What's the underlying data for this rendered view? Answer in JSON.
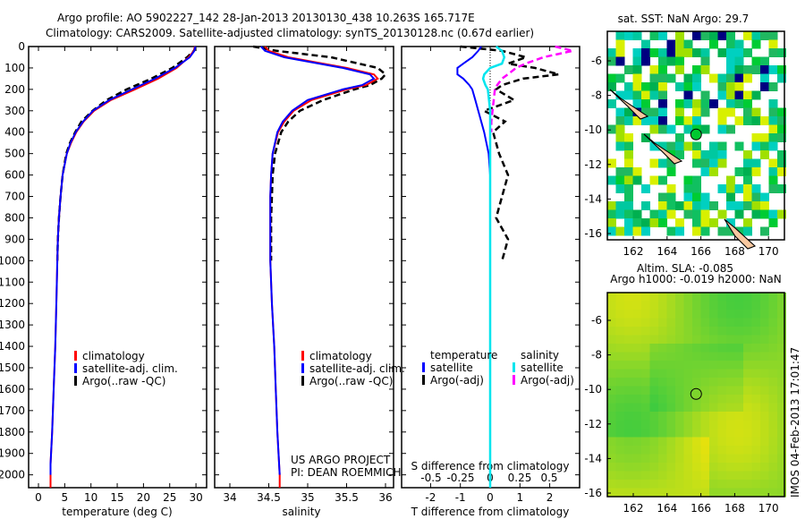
{
  "title": {
    "line1": "Argo profile: AO 5902227_142 28-Jan-2013 20130130_438 10.263S 165.717E",
    "line2": "Climatology: CARS2009. Satellite-adjusted climatology: synTS_20130128.nc (0.67d earlier)"
  },
  "depth_ticks": [
    0,
    100,
    200,
    300,
    400,
    500,
    600,
    700,
    800,
    900,
    1000,
    1100,
    1200,
    1300,
    1400,
    1500,
    1600,
    1700,
    1800,
    1900,
    2000
  ],
  "credit": {
    "line1": "US ARGO PROJECT",
    "line2": "PI: DEAN ROEMMICH"
  },
  "timestamp": "IMOS 04-Feb-2013 17:01:47",
  "colors": {
    "climatology": "#ff0000",
    "satellite": "#0000ff",
    "argo": "#000000",
    "sal_satellite": "#00e5ee",
    "sal_argo": "#ff00ff",
    "land": "#f8c8a0"
  },
  "chart_data": [
    {
      "type": "line",
      "xlabel": "temperature (deg C)",
      "ylabel": "depth",
      "xlim": [
        -2,
        32
      ],
      "ylim": [
        2060,
        0
      ],
      "xticks": [
        0,
        5,
        10,
        15,
        20,
        25,
        30
      ],
      "legend": [
        "climatology",
        "satellite-adj. clim.",
        "Argo(..raw -QC)"
      ],
      "legend_position": "bottom-center",
      "depth": [
        0,
        20,
        50,
        100,
        150,
        200,
        250,
        300,
        350,
        400,
        450,
        500,
        600,
        700,
        800,
        900,
        1000,
        1200,
        1400,
        1600,
        1800,
        1950,
        2000,
        2060
      ],
      "series": [
        {
          "name": "climatology",
          "values": [
            29.8,
            29.6,
            28.6,
            26.3,
            22.8,
            18.4,
            13.8,
            10.6,
            8.6,
            7.2,
            6.2,
            5.4,
            4.6,
            4.2,
            3.9,
            3.7,
            3.6,
            3.4,
            3.2,
            2.9,
            2.6,
            2.3,
            2.3,
            2.3
          ]
        },
        {
          "name": "satellite-adj. clim.",
          "values": [
            29.9,
            29.7,
            28.8,
            26.0,
            22.2,
            17.8,
            13.5,
            10.4,
            8.5,
            7.1,
            6.1,
            5.4,
            4.6,
            4.2,
            3.9,
            3.7,
            3.6,
            3.4,
            3.2,
            2.9,
            2.6,
            2.3,
            2.3,
            null
          ]
        },
        {
          "name": "Argo(..raw -QC)",
          "values": [
            29.9,
            29.6,
            28.3,
            25.5,
            21.5,
            16.8,
            13.0,
            10.3,
            8.2,
            7.0,
            6.0,
            5.3,
            4.6,
            4.2,
            3.9,
            3.7,
            3.6,
            null,
            null,
            null,
            null,
            null,
            null,
            null
          ]
        }
      ]
    },
    {
      "type": "line",
      "xlabel": "salinity",
      "ylabel": "depth",
      "xlim": [
        33.8,
        36.15
      ],
      "ylim": [
        2060,
        0
      ],
      "xticks": [
        34,
        34.5,
        35,
        35.5,
        36
      ],
      "legend": [
        "climatology",
        "satellite-adj. clim.",
        "Argo(..raw -QC)"
      ],
      "legend_position": "bottom-center",
      "depth": [
        0,
        20,
        50,
        100,
        130,
        150,
        180,
        200,
        250,
        300,
        350,
        400,
        500,
        600,
        700,
        800,
        1000,
        1200,
        1400,
        1600,
        1800,
        2000,
        2060
      ],
      "series": [
        {
          "name": "climatology",
          "values": [
            34.45,
            34.5,
            34.75,
            35.5,
            35.85,
            35.9,
            35.75,
            35.5,
            35.05,
            34.82,
            34.7,
            34.62,
            34.55,
            34.53,
            34.52,
            34.52,
            34.52,
            34.54,
            34.57,
            34.59,
            34.61,
            34.64,
            34.64
          ]
        },
        {
          "name": "satellite-adj. clim.",
          "values": [
            34.4,
            34.45,
            34.7,
            35.45,
            35.8,
            35.85,
            35.7,
            35.45,
            35.0,
            34.8,
            34.68,
            34.61,
            34.55,
            34.53,
            34.52,
            34.52,
            34.52,
            34.54,
            34.57,
            34.59,
            34.61,
            34.64,
            null
          ]
        },
        {
          "name": "Argo(..raw -QC)",
          "values": [
            34.3,
            34.6,
            35.3,
            35.9,
            36.0,
            35.95,
            35.8,
            35.6,
            35.2,
            34.9,
            34.75,
            34.66,
            34.58,
            34.55,
            34.54,
            34.53,
            34.53,
            null,
            null,
            null,
            null,
            null,
            null
          ]
        }
      ]
    },
    {
      "type": "line",
      "xlabel": "T difference from climatology",
      "xlabel2": "S difference from climatology",
      "xlim": [
        -3,
        3
      ],
      "ylim": [
        2060,
        0
      ],
      "xticks": [
        -2,
        -1,
        0,
        1,
        2
      ],
      "xticks_s": [
        "-0.5",
        "-0.25",
        "0",
        "0.25",
        "0.5"
      ],
      "legend": {
        "temperature": "temperature",
        "salinity": "salinity",
        "t_sat": "satellite",
        "t_argo": "Argo(-adj)",
        "s_sat": "satellite",
        "s_argo": "Argo(-adj)"
      },
      "legend_position": "bottom-center",
      "depth": [
        0,
        20,
        50,
        80,
        100,
        130,
        150,
        180,
        200,
        250,
        300,
        350,
        400,
        500,
        600,
        700,
        800,
        900,
        1000,
        2060
      ],
      "series": [
        {
          "name": "T satellite",
          "values": [
            -0.3,
            -0.4,
            -0.6,
            -0.9,
            -1.1,
            -1.1,
            -0.9,
            -0.7,
            -0.6,
            -0.5,
            -0.4,
            -0.3,
            -0.2,
            -0.05,
            0,
            0,
            0,
            0,
            0,
            0
          ]
        },
        {
          "name": "T Argo(-adj)",
          "values": [
            -1.0,
            0.4,
            1.2,
            0.6,
            1.5,
            2.3,
            1.1,
            0.4,
            0.2,
            0.8,
            -0.2,
            0.5,
            0.1,
            0.3,
            0.6,
            0.4,
            0.2,
            0.6,
            0.4,
            null
          ]
        },
        {
          "name": "S satellite",
          "values": [
            0.05,
            0.1,
            0.12,
            0.1,
            0.0,
            -0.05,
            -0.06,
            -0.04,
            -0.02,
            -0.01,
            0,
            0,
            0,
            0,
            0,
            0,
            0,
            0,
            0,
            0
          ]
        },
        {
          "name": "S Argo(-adj)",
          "values": [
            0.55,
            0.7,
            0.45,
            0.3,
            0.22,
            0.15,
            0.1,
            0.06,
            0.04,
            0.03,
            0.02,
            0.01,
            0.01,
            null,
            null,
            null,
            null,
            null,
            null,
            null
          ]
        }
      ]
    },
    {
      "type": "heatmap",
      "title": "sat. SST: NaN Argo: 29.7",
      "xlim": [
        160.6,
        170.9
      ],
      "ylim": [
        -16.3,
        -4.6
      ],
      "xticks": [
        162,
        164,
        166,
        168,
        170
      ],
      "yticks": [
        -6,
        -8,
        -10,
        -12,
        -14,
        -16
      ],
      "marker": {
        "lon": 165.717,
        "lat": -10.263
      }
    },
    {
      "type": "heatmap",
      "title": "Altim. SLA: -0.085",
      "subtitle": "Argo h1000: -0.019 h2000: NaN",
      "xlim": [
        160.6,
        170.9
      ],
      "ylim": [
        -16.3,
        -4.6
      ],
      "xticks": [
        162,
        164,
        166,
        168,
        170
      ],
      "yticks": [
        -6,
        -8,
        -10,
        -12,
        -14,
        -16
      ],
      "marker": {
        "lon": 165.717,
        "lat": -10.263
      }
    }
  ]
}
